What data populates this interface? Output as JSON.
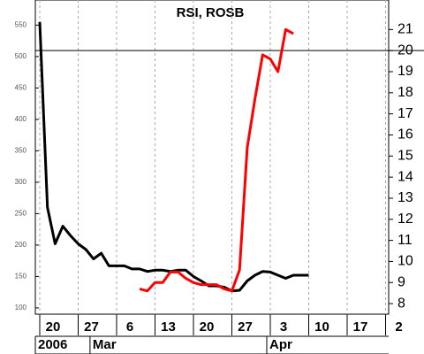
{
  "chart_data": {
    "type": "line",
    "title": "RSI, ROSB",
    "categories": [
      "20",
      null,
      null,
      null,
      null,
      "27",
      null,
      null,
      null,
      null,
      "6",
      null,
      null,
      null,
      null,
      "13",
      null,
      null,
      null,
      null,
      "20",
      null,
      null,
      null,
      null,
      "27",
      null,
      null,
      null,
      null,
      "3",
      null,
      null,
      null,
      null,
      "10",
      null,
      null,
      null,
      null,
      "17",
      null,
      null,
      null,
      null,
      "2",
      null,
      null,
      null,
      null
    ],
    "period_labels": [
      {
        "label": "2006",
        "start_category": 0
      },
      {
        "label": "Mar",
        "start_category": 7
      },
      {
        "label": "Apr",
        "start_category": 30
      }
    ],
    "series": [
      {
        "name": "RSI",
        "color": "#000000",
        "axis": "y",
        "values": [
          555,
          260,
          202,
          230,
          215,
          202,
          193,
          178,
          187,
          167,
          167,
          167,
          162,
          162,
          158,
          160,
          160,
          158,
          160,
          160,
          150,
          143,
          135,
          135,
          133,
          127,
          128,
          143,
          152,
          158,
          157,
          152,
          147,
          152,
          152,
          152,
          null,
          null,
          null,
          null,
          null,
          null,
          null,
          null,
          null,
          null,
          null,
          null,
          null,
          null
        ]
      },
      {
        "name": "ROSB",
        "color": "#ff0000",
        "axis": "y2",
        "values": [
          null,
          null,
          null,
          null,
          null,
          null,
          null,
          null,
          null,
          null,
          null,
          null,
          null,
          8.7,
          8.6,
          9.0,
          9.0,
          9.5,
          9.5,
          9.2,
          9.0,
          8.9,
          8.9,
          8.9,
          8.7,
          8.6,
          9.6,
          15.4,
          17.7,
          19.8,
          19.6,
          19.0,
          21.0,
          20.8,
          null,
          null,
          null,
          null,
          null,
          null,
          null,
          null,
          null,
          null,
          null,
          null,
          null,
          null,
          null,
          null
        ]
      }
    ],
    "ylim": [
      90,
      590
    ],
    "yticks": [
      100,
      150,
      200,
      250,
      300,
      350,
      400,
      450,
      500,
      550
    ],
    "y2lim": [
      7.5,
      22.4
    ],
    "y2ticks": [
      8,
      9,
      10,
      11,
      12,
      13,
      14,
      15,
      16,
      17,
      18,
      19,
      20,
      21
    ],
    "y2_reference_line": 20,
    "grid": "vertical-dashed"
  }
}
